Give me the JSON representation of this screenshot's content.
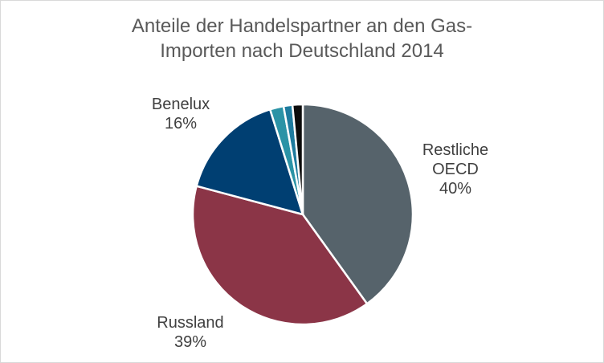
{
  "chart_data": {
    "type": "pie",
    "title_lines": [
      "Anteile der Handelspartner an den Gas-",
      "Importen nach Deutschland 2014"
    ],
    "slices": [
      {
        "name": "Restliche OECD",
        "name_lines": [
          "Restliche",
          "OECD"
        ],
        "value": 40,
        "value_label": "40%",
        "color": "#56636b"
      },
      {
        "name": "Russland",
        "name_lines": [
          "Russland"
        ],
        "value": 39,
        "value_label": "39%",
        "color": "#8b3547"
      },
      {
        "name": "Benelux",
        "name_lines": [
          "Benelux"
        ],
        "value": 16,
        "value_label": "16%",
        "color": "#003f72"
      },
      {
        "name": "",
        "name_lines": [],
        "value": 2,
        "value_label": "",
        "color": "#2b93a6"
      },
      {
        "name": "",
        "name_lines": [],
        "value": 1.3,
        "value_label": "",
        "color": "#1e7b9e"
      },
      {
        "name": "",
        "name_lines": [],
        "value": 1.5,
        "value_label": "",
        "color": "#0c0c0c"
      }
    ],
    "legend": "none"
  }
}
